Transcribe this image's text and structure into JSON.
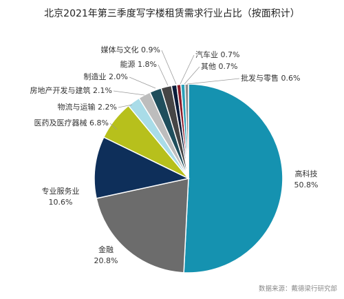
{
  "chart_data": {
    "type": "pie",
    "title": "北京2021年第三季度写字楼租赁需求行业占比（按面积计）",
    "unit": "%",
    "source": "数据来源：戴德梁行研究部",
    "slices": [
      {
        "name": "高科技",
        "value": 50.8,
        "label": "50.8%",
        "color": "#1592b0"
      },
      {
        "name": "金融",
        "value": 20.8,
        "label": "20.8%",
        "color": "#6c6c6c"
      },
      {
        "name": "专业服务业",
        "value": 10.6,
        "label": "10.6%",
        "color": "#0e2f5a"
      },
      {
        "name": "医药及医疗器械",
        "value": 6.8,
        "label": "6.8%",
        "color": "#b7c01c"
      },
      {
        "name": "物流与运输",
        "value": 2.2,
        "label": "2.2%",
        "color": "#a9dce8"
      },
      {
        "name": "房地产开发与建筑",
        "value": 2.1,
        "label": "2.1%",
        "color": "#bdbdbd"
      },
      {
        "name": "制造业",
        "value": 2.0,
        "label": "2.0%",
        "color": "#1f4e5c"
      },
      {
        "name": "能源",
        "value": 1.8,
        "label": "1.8%",
        "color": "#454545"
      },
      {
        "name": "媒体与文化",
        "value": 0.9,
        "label": "0.9%",
        "color": "#0b1d3a"
      },
      {
        "name": "汽车业",
        "value": 0.7,
        "label": "0.7%",
        "color": "#8b1c2a"
      },
      {
        "name": "其他",
        "value": 0.7,
        "label": "0.7%",
        "color": "#2aa0b7"
      },
      {
        "name": "批发与零售",
        "value": 0.6,
        "label": "0.6%",
        "color": "#8c8c8c"
      }
    ]
  }
}
